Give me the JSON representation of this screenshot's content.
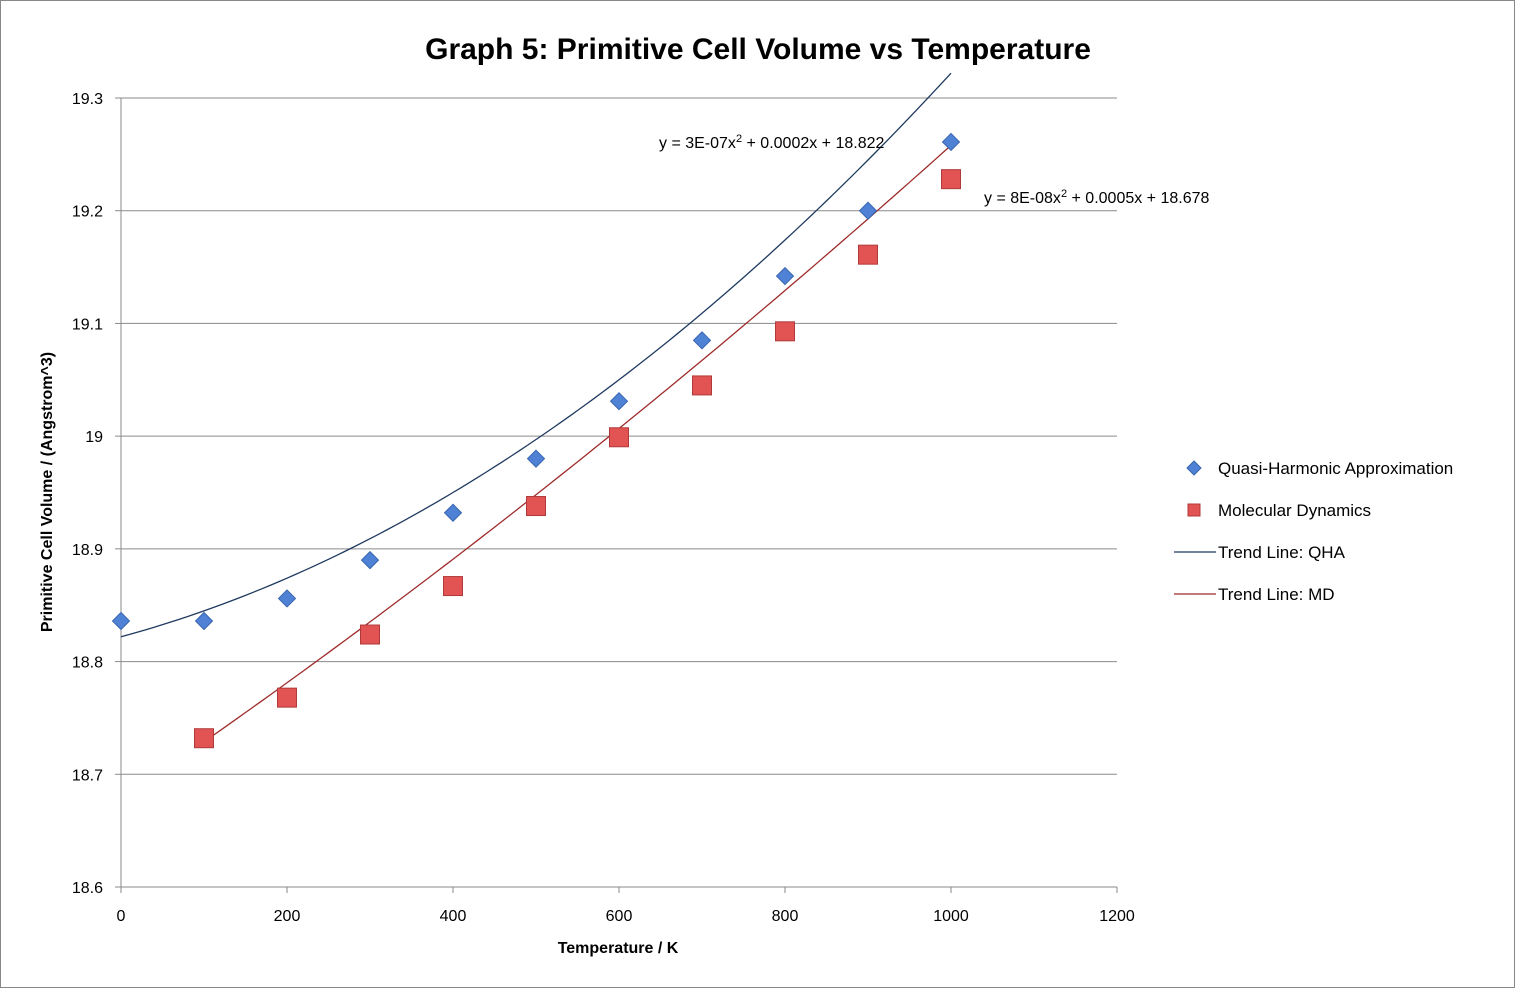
{
  "chart_data": {
    "type": "scatter",
    "title": "Graph 5: Primitive Cell Volume vs Temperature",
    "xlabel": "Temperature / K",
    "ylabel": "Primitive Cell Volume / (Angstrom^3)",
    "xlim": [
      0,
      1200
    ],
    "ylim": [
      18.6,
      19.3
    ],
    "xticks": [
      0,
      200,
      400,
      600,
      800,
      1000,
      1200
    ],
    "yticks": [
      18.6,
      18.7,
      18.8,
      18.9,
      19,
      19.1,
      19.2,
      19.3
    ],
    "ytick_labels": [
      "18.6",
      "18.7",
      "18.8",
      "18.9",
      "19",
      "19.1",
      "19.2",
      "19.3"
    ],
    "grid": true,
    "legend_position": "right",
    "series": [
      {
        "name": "Quasi-Harmonic Approximation",
        "marker": "diamond",
        "color": "#4f81d4",
        "x": [
          0,
          100,
          200,
          300,
          400,
          500,
          600,
          700,
          800,
          900,
          1000
        ],
        "y": [
          18.836,
          18.836,
          18.856,
          18.89,
          18.932,
          18.98,
          19.031,
          19.085,
          19.142,
          19.2,
          19.261
        ]
      },
      {
        "name": "Molecular Dynamics",
        "marker": "square",
        "color": "#e25353",
        "x": [
          100,
          200,
          300,
          400,
          500,
          600,
          700,
          800,
          900,
          1000
        ],
        "y": [
          18.732,
          18.768,
          18.824,
          18.867,
          18.938,
          18.999,
          19.045,
          19.093,
          19.161,
          19.228
        ]
      }
    ],
    "trendlines": [
      {
        "name": "Trend Line: QHA",
        "color": "#1f3a5f",
        "coefficients": [
          3e-07,
          0.0002,
          18.822
        ],
        "x_range": [
          0,
          1000
        ],
        "equation": "y = 3E-07x",
        "equation_exp": "2",
        "equation_rest": " + 0.0002x + 18.822"
      },
      {
        "name": "Trend Line: MD",
        "color": "#9e2b2b",
        "coefficients": [
          8e-08,
          0.0005,
          18.678
        ],
        "x_range": [
          100,
          1000
        ],
        "equation": "y = 8E-08x",
        "equation_exp": "2",
        "equation_rest": " + 0.0005x + 18.678"
      }
    ]
  }
}
